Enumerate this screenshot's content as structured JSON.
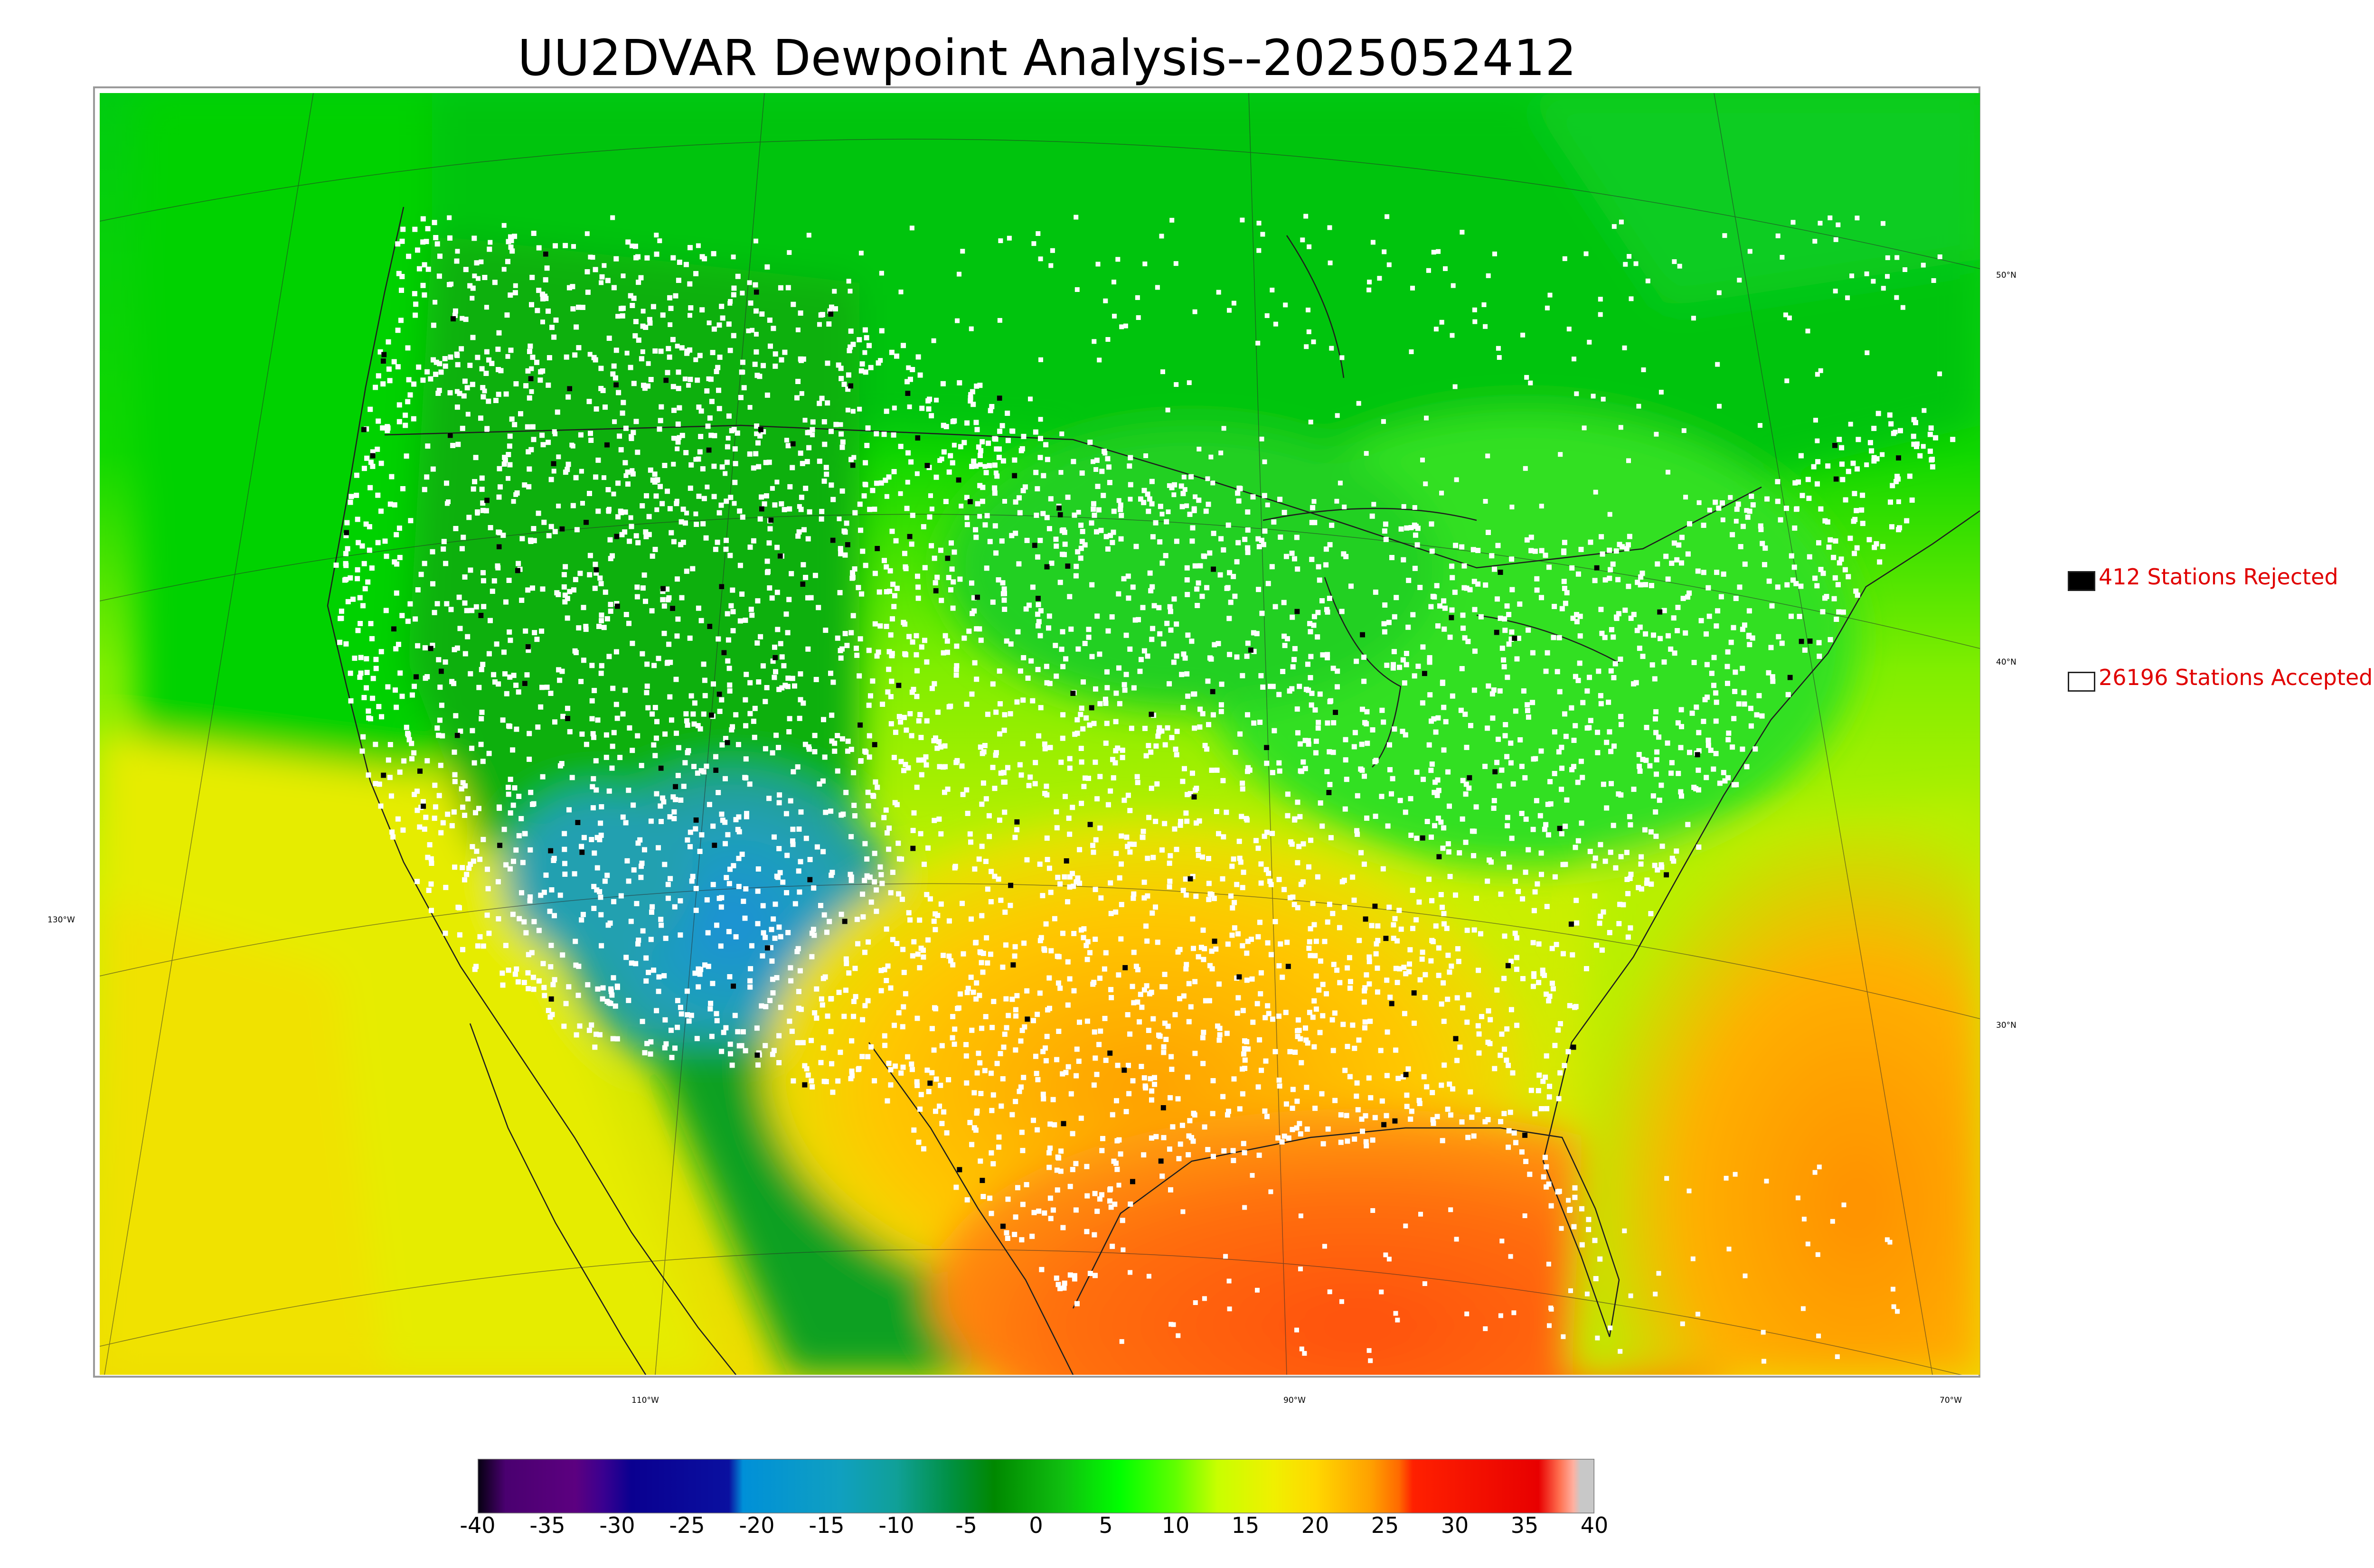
{
  "title": "UU2DVAR Dewpoint Analysis--2025052412",
  "legend": {
    "rejected": {
      "label": "412 Stations Rejected",
      "swatch_color": "#000000"
    },
    "accepted": {
      "label": "26196 Stations Accepted",
      "swatch_color": "#ffffff"
    }
  },
  "grid_labels": {
    "lat_50": "50°N",
    "lat_40": "40°N",
    "lat_30": "30°N",
    "lon_130": "130°W",
    "lon_110": "110°W",
    "lon_90": "90°W",
    "lon_70": "70°W"
  },
  "colorbar": {
    "ticks": [
      "-40",
      "-35",
      "-30",
      "-25",
      "-20",
      "-15",
      "-10",
      "-5",
      "0",
      "5",
      "10",
      "15",
      "20",
      "25",
      "30",
      "35",
      "40"
    ],
    "min": -40,
    "max": 40,
    "stops": [
      {
        "v": -40,
        "color": "#050010"
      },
      {
        "v": -38,
        "color": "#4a0070"
      },
      {
        "v": -33,
        "color": "#5c0080"
      },
      {
        "v": -31,
        "color": "#3a0090"
      },
      {
        "v": -29,
        "color": "#0a0090"
      },
      {
        "v": -22,
        "color": "#0a10a0"
      },
      {
        "v": -21,
        "color": "#0090d8"
      },
      {
        "v": -14,
        "color": "#10a0c0"
      },
      {
        "v": -10,
        "color": "#10a098"
      },
      {
        "v": -6,
        "color": "#009040"
      },
      {
        "v": -3,
        "color": "#008800"
      },
      {
        "v": 2,
        "color": "#10c010"
      },
      {
        "v": 6,
        "color": "#00ff00"
      },
      {
        "v": 10,
        "color": "#60ff00"
      },
      {
        "v": 13,
        "color": "#c8ff00"
      },
      {
        "v": 17,
        "color": "#f0f000"
      },
      {
        "v": 20,
        "color": "#ffd800"
      },
      {
        "v": 24,
        "color": "#ffa000"
      },
      {
        "v": 26,
        "color": "#ff6a00"
      },
      {
        "v": 27,
        "color": "#ff2000"
      },
      {
        "v": 36,
        "color": "#e80000"
      },
      {
        "v": 37.5,
        "color": "#ff7050"
      },
      {
        "v": 38.5,
        "color": "#ffb0a0"
      },
      {
        "v": 39,
        "color": "#c8c8c8"
      },
      {
        "v": 40,
        "color": "#c8c8c8"
      }
    ]
  },
  "colors": {
    "ocean_pacific_north": "#00d010",
    "ocean_pacific_south": "#e8e400",
    "gulf": "#ff6a10",
    "atlantic_south": "#ffa000",
    "canada": "#00c800",
    "dry_west": "#1fa0c8",
    "boundary": "#2a2a2a",
    "accepted_station": "#ffffff",
    "rejected_station": "#000000"
  }
}
